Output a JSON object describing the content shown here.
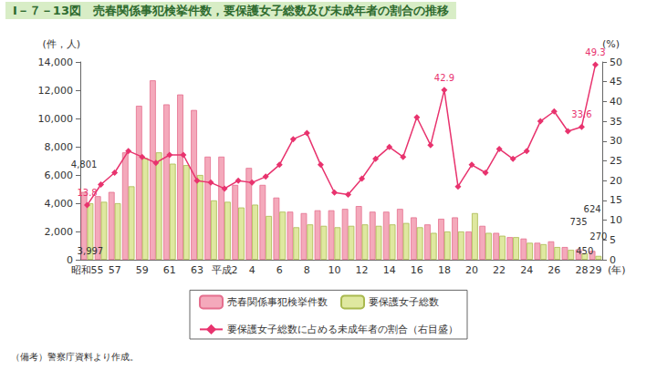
{
  "chart_data": {
    "type": "bar",
    "title": "Ⅰ－７－13図　売春関係事犯検挙件数，要保護女子総数及び未成年者の割合の推移",
    "note": "（備考）警察庁資料より作成。",
    "y_label": "(件，人)",
    "y2_label": "(%)",
    "x_label": "(年)",
    "categories": [
      "昭和55",
      null,
      "57",
      null,
      "59",
      null,
      "61",
      null,
      "63",
      null,
      "平成2",
      null,
      "4",
      null,
      "6",
      null,
      "8",
      null,
      "10",
      null,
      "12",
      null,
      "14",
      null,
      "16",
      null,
      "18",
      null,
      "20",
      null,
      "22",
      null,
      "24",
      null,
      "26",
      null,
      "28",
      "29"
    ],
    "series": [
      {
        "name": "売春関係事犯検挙件数",
        "type": "bar",
        "color": "#f4a9bb",
        "values": [
          4801,
          4500,
          4800,
          7600,
          10900,
          12700,
          11000,
          11700,
          10600,
          7300,
          7300,
          5300,
          6500,
          5300,
          4400,
          3400,
          3300,
          3500,
          3500,
          3600,
          3800,
          3400,
          3400,
          3600,
          3000,
          2500,
          2900,
          3000,
          2000,
          2400,
          1900,
          1600,
          1500,
          1200,
          1300,
          900,
          735,
          624
        ],
        "value_labels": [
          "4,801",
          null,
          null,
          null,
          null,
          null,
          null,
          null,
          null,
          null,
          null,
          null,
          null,
          null,
          null,
          null,
          null,
          null,
          null,
          null,
          null,
          null,
          null,
          null,
          null,
          null,
          null,
          null,
          null,
          null,
          null,
          null,
          null,
          null,
          null,
          null,
          "735",
          "624"
        ]
      },
      {
        "name": "要保護女子総数",
        "type": "bar",
        "color": "#dfe8a0",
        "values": [
          3997,
          4100,
          4000,
          5200,
          7200,
          7600,
          6800,
          6700,
          6000,
          4200,
          4100,
          3700,
          3900,
          3100,
          3400,
          2300,
          2500,
          2400,
          2300,
          2400,
          2500,
          2400,
          2500,
          2600,
          2300,
          1900,
          2000,
          2000,
          3300,
          1900,
          1700,
          1600,
          1200,
          1100,
          900,
          700,
          450,
          270
        ],
        "value_labels": [
          "3,997",
          null,
          null,
          null,
          null,
          null,
          null,
          null,
          null,
          null,
          null,
          null,
          null,
          null,
          null,
          null,
          null,
          null,
          null,
          null,
          null,
          null,
          null,
          null,
          null,
          null,
          null,
          null,
          null,
          null,
          null,
          null,
          null,
          null,
          null,
          null,
          "450",
          "270"
        ]
      },
      {
        "name": "要保護女子総数に占める未成年者の割合（右目盛）",
        "type": "line",
        "axis": "y2",
        "color": "#e8336e",
        "marker": "diamond",
        "values": [
          13.8,
          19,
          22,
          27.5,
          26,
          24.5,
          26.5,
          26.5,
          20,
          19.5,
          18,
          20,
          19.5,
          21,
          24,
          30.5,
          32,
          24,
          17,
          16.5,
          20.5,
          25.5,
          28.5,
          26,
          36,
          29,
          42.9,
          18.5,
          24,
          22,
          28,
          25.5,
          27.5,
          35,
          37.5,
          32.5,
          33.6,
          49.3
        ],
        "value_labels": [
          "13.8",
          null,
          null,
          null,
          null,
          null,
          null,
          null,
          null,
          null,
          null,
          null,
          null,
          null,
          null,
          null,
          null,
          null,
          null,
          null,
          null,
          null,
          null,
          null,
          null,
          null,
          "42.9",
          null,
          null,
          null,
          null,
          null,
          null,
          null,
          null,
          null,
          "33.6",
          "49.3"
        ]
      }
    ],
    "ylim": [
      0,
      14000
    ],
    "yticks": [
      0,
      {
        "value": 2000,
        "label": "2,000"
      },
      {
        "value": 4000,
        "label": "4,000"
      },
      {
        "value": 6000,
        "label": "6,000"
      },
      {
        "value": 8000,
        "label": "8,000"
      },
      {
        "value": 10000,
        "label": "10,000"
      },
      {
        "value": 12000,
        "label": "12,000"
      },
      {
        "value": 14000,
        "label": "14,000"
      }
    ],
    "y2lim": [
      0,
      50
    ],
    "y2ticks": [
      0,
      5,
      10,
      15,
      20,
      25,
      30,
      35,
      40,
      45,
      50
    ],
    "grid": false,
    "legend": "bottom"
  }
}
